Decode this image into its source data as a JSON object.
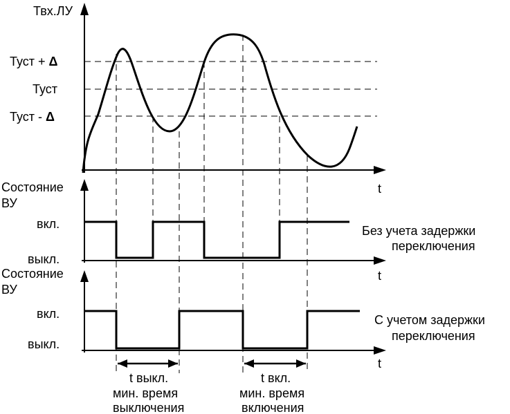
{
  "top_chart": {
    "y_axis_label": "Твх.ЛУ",
    "levels": [
      {
        "label_main": "Туст",
        "label_suffix": " + ",
        "label_delta": "Δ"
      },
      {
        "label_main": "Туст",
        "label_suffix": "",
        "label_delta": ""
      },
      {
        "label_main": "Туст",
        "label_suffix": " - ",
        "label_delta": "Δ"
      }
    ],
    "x_axis_label": "t"
  },
  "middle_chart": {
    "y_axis_label_line1": "Состояние",
    "y_axis_label_line2": "ВУ",
    "on_label": "вкл.",
    "off_label": "выкл.",
    "x_axis_label": "t",
    "caption_line1": "Без учета задержки",
    "caption_line2": "переключения"
  },
  "bottom_chart": {
    "y_axis_label_line1": "Состояние",
    "y_axis_label_line2": "ВУ",
    "on_label": "вкл.",
    "off_label": "выкл.",
    "x_axis_label": "t",
    "caption_line1": "С учетом задержки",
    "caption_line2": "переключения"
  },
  "intervals": [
    {
      "title": "t выкл.",
      "desc_line1": "мин. время",
      "desc_line2": "выключения"
    },
    {
      "title": "t вкл.",
      "desc_line1": "мин. время",
      "desc_line2": "включения"
    }
  ]
}
